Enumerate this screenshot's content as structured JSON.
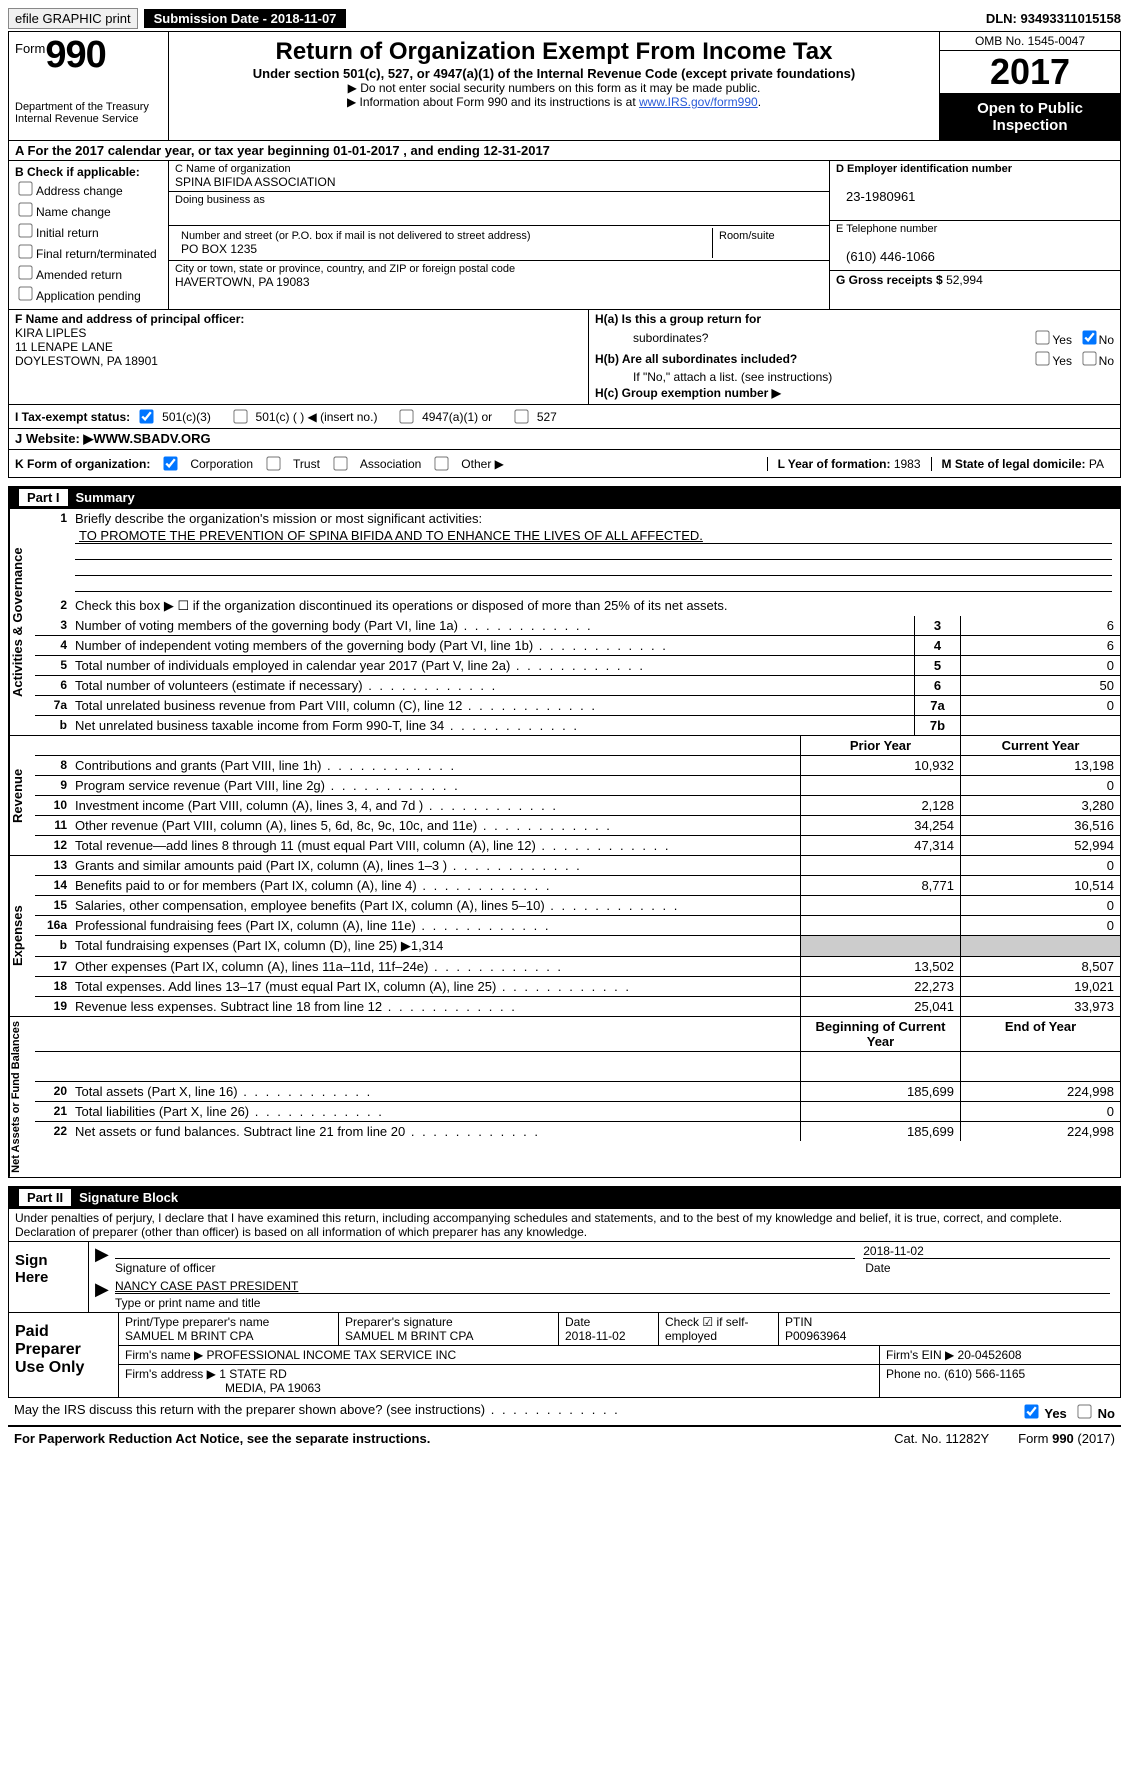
{
  "topbar": {
    "efile": "efile GRAPHIC print",
    "submission_label": "Submission Date - ",
    "submission_date": "2018-11-07",
    "dln": "DLN: 93493311015158"
  },
  "header": {
    "form_prefix": "Form",
    "form_number": "990",
    "dept1": "Department of the Treasury",
    "dept2": "Internal Revenue Service",
    "title": "Return of Organization Exempt From Income Tax",
    "subtitle": "Under section 501(c), 527, or 4947(a)(1) of the Internal Revenue Code (except private foundations)",
    "note1": "▶ Do not enter social security numbers on this form as it may be made public.",
    "note2_pre": "▶ Information about Form 990 and its instructions is at ",
    "note2_link": "www.IRS.gov/form990",
    "note2_post": ".",
    "omb": "OMB No. 1545-0047",
    "year": "2017",
    "open_public": "Open to Public Inspection"
  },
  "rowA": "A  For the 2017 calendar year, or tax year beginning 01-01-2017   , and ending 12-31-2017",
  "colB": {
    "title": "B Check if applicable:",
    "items": [
      "Address change",
      "Name change",
      "Initial return",
      "Final return/terminated",
      "Amended return",
      "Application pending"
    ]
  },
  "colC": {
    "name_label": "C Name of organization",
    "name": "SPINA BIFIDA ASSOCIATION",
    "dba_label": "Doing business as",
    "dba": "",
    "street_label": "Number and street (or P.O. box if mail is not delivered to street address)",
    "street": "PO BOX 1235",
    "room_label": "Room/suite",
    "city_label": "City or town, state or province, country, and ZIP or foreign postal code",
    "city": "HAVERTOWN, PA  19083"
  },
  "colD": {
    "ein_label": "D Employer identification number",
    "ein": "23-1980961",
    "tel_label": "E Telephone number",
    "tel": "(610) 446-1066",
    "gross_label": "G Gross receipts $ ",
    "gross": "52,994"
  },
  "rowF": {
    "label": "F  Name and address of principal officer:",
    "l1": "KIRA LIPLES",
    "l2": "11 LENAPE LANE",
    "l3": "DOYLESTOWN, PA  18901"
  },
  "rowH": {
    "ha": "H(a)  Is this a group return for",
    "ha2": "subordinates?",
    "hb": "H(b)  Are all subordinates included?",
    "hnote": "If \"No,\" attach a list. (see instructions)",
    "hc": "H(c)  Group exemption number ▶",
    "yes": "Yes",
    "no": "No"
  },
  "rowI": {
    "label": "I  Tax-exempt status:",
    "o1": "501(c)(3)",
    "o2": "501(c) (  ) ◀ (insert no.)",
    "o3": "4947(a)(1) or",
    "o4": "527"
  },
  "rowJ": {
    "label": "J  Website: ▶ ",
    "url": "WWW.SBADV.ORG"
  },
  "rowK": {
    "label": "K Form of organization:",
    "o1": "Corporation",
    "o2": "Trust",
    "o3": "Association",
    "o4": "Other ▶",
    "year_label": "L Year of formation: ",
    "year": "1983",
    "state_label": "M State of legal domicile: ",
    "state": "PA"
  },
  "partI": {
    "title": "Summary",
    "num": "Part I",
    "q1": "Briefly describe the organization's mission or most significant activities:",
    "mission": "TO PROMOTE THE PREVENTION OF SPINA BIFIDA AND TO ENHANCE THE LIVES OF ALL AFFECTED.",
    "q2": "Check this box ▶ ☐  if the organization discontinued its operations or disposed of more than 25% of its net assets."
  },
  "gov_rows": [
    {
      "n": "3",
      "d": "Number of voting members of the governing body (Part VI, line 1a)",
      "box": "3",
      "v": "6"
    },
    {
      "n": "4",
      "d": "Number of independent voting members of the governing body (Part VI, line 1b)",
      "box": "4",
      "v": "6"
    },
    {
      "n": "5",
      "d": "Total number of individuals employed in calendar year 2017 (Part V, line 2a)",
      "box": "5",
      "v": "0"
    },
    {
      "n": "6",
      "d": "Total number of volunteers (estimate if necessary)",
      "box": "6",
      "v": "50"
    },
    {
      "n": "7a",
      "d": "Total unrelated business revenue from Part VIII, column (C), line 12",
      "box": "7a",
      "v": "0"
    },
    {
      "n": "b",
      "d": "Net unrelated business taxable income from Form 990-T, line 34",
      "box": "7b",
      "v": ""
    }
  ],
  "cols": {
    "prior": "Prior Year",
    "current": "Current Year",
    "begin": "Beginning of Current Year",
    "end": "End of Year"
  },
  "revenue_rows": [
    {
      "n": "8",
      "d": "Contributions and grants (Part VIII, line 1h)",
      "p": "10,932",
      "c": "13,198"
    },
    {
      "n": "9",
      "d": "Program service revenue (Part VIII, line 2g)",
      "p": "",
      "c": "0"
    },
    {
      "n": "10",
      "d": "Investment income (Part VIII, column (A), lines 3, 4, and 7d )",
      "p": "2,128",
      "c": "3,280"
    },
    {
      "n": "11",
      "d": "Other revenue (Part VIII, column (A), lines 5, 6d, 8c, 9c, 10c, and 11e)",
      "p": "34,254",
      "c": "36,516"
    },
    {
      "n": "12",
      "d": "Total revenue—add lines 8 through 11 (must equal Part VIII, column (A), line 12)",
      "p": "47,314",
      "c": "52,994"
    }
  ],
  "expense_rows": [
    {
      "n": "13",
      "d": "Grants and similar amounts paid (Part IX, column (A), lines 1–3 )",
      "p": "",
      "c": "0"
    },
    {
      "n": "14",
      "d": "Benefits paid to or for members (Part IX, column (A), line 4)",
      "p": "8,771",
      "c": "10,514"
    },
    {
      "n": "15",
      "d": "Salaries, other compensation, employee benefits (Part IX, column (A), lines 5–10)",
      "p": "",
      "c": "0"
    },
    {
      "n": "16a",
      "d": "Professional fundraising fees (Part IX, column (A), line 11e)",
      "p": "",
      "c": "0"
    },
    {
      "n": "b",
      "d": "Total fundraising expenses (Part IX, column (D), line 25) ▶1,314",
      "p": "GRAY",
      "c": "GRAY"
    },
    {
      "n": "17",
      "d": "Other expenses (Part IX, column (A), lines 11a–11d, 11f–24e)",
      "p": "13,502",
      "c": "8,507"
    },
    {
      "n": "18",
      "d": "Total expenses. Add lines 13–17 (must equal Part IX, column (A), line 25)",
      "p": "22,273",
      "c": "19,021"
    },
    {
      "n": "19",
      "d": "Revenue less expenses. Subtract line 18 from line 12",
      "p": "25,041",
      "c": "33,973"
    }
  ],
  "net_rows": [
    {
      "n": "20",
      "d": "Total assets (Part X, line 16)",
      "p": "185,699",
      "c": "224,998"
    },
    {
      "n": "21",
      "d": "Total liabilities (Part X, line 26)",
      "p": "",
      "c": "0"
    },
    {
      "n": "22",
      "d": "Net assets or fund balances. Subtract line 21 from line 20",
      "p": "185,699",
      "c": "224,998"
    }
  ],
  "vtabs": {
    "gov": "Activities & Governance",
    "rev": "Revenue",
    "exp": "Expenses",
    "net": "Net Assets or Fund Balances"
  },
  "partII": {
    "num": "Part II",
    "title": "Signature Block",
    "declare": "Under penalties of perjury, I declare that I have examined this return, including accompanying schedules and statements, and to the best of my knowledge and belief, it is true, correct, and complete. Declaration of preparer (other than officer) is based on all information of which preparer has any knowledge.",
    "sign_here": "Sign Here",
    "sig_label": "Signature of officer",
    "date_label": "Date",
    "sig_date": "2018-11-02",
    "name_line": "NANCY CASE PAST PRESIDENT",
    "name_label": "Type or print name and title"
  },
  "preparer": {
    "title": "Paid Preparer Use Only",
    "h1": "Print/Type preparer's name",
    "h2": "Preparer's signature",
    "h3": "Date",
    "h4": "Check ☑ if self-employed",
    "h5": "PTIN",
    "v1": "SAMUEL M BRINT CPA",
    "v2": "SAMUEL M BRINT CPA",
    "v3": "2018-11-02",
    "v5": "P00963964",
    "firm_name_label": "Firm's name      ▶ ",
    "firm_name": "PROFESSIONAL INCOME TAX SERVICE INC",
    "ein_label": "Firm's EIN ▶ ",
    "ein": "20-0452608",
    "addr_label": "Firm's address ▶ ",
    "addr1": "1 STATE RD",
    "addr2": "MEDIA, PA  19063",
    "phone_label": "Phone no. ",
    "phone": "(610) 566-1165"
  },
  "footer": {
    "discuss": "May the IRS discuss this return with the preparer shown above? (see instructions)",
    "yes": "Yes",
    "no": "No",
    "paperwork": "For Paperwork Reduction Act Notice, see the separate instructions.",
    "cat": "Cat. No. 11282Y",
    "form": "Form 990 (2017)"
  }
}
